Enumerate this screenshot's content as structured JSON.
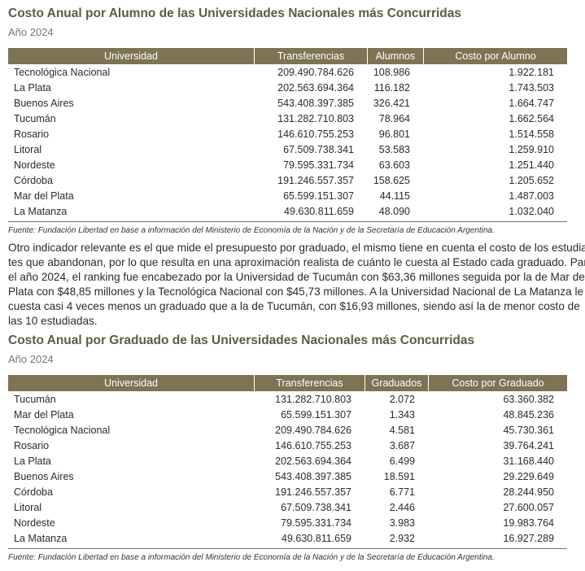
{
  "sections": [
    {
      "title": "Costo Anual por Alumno de las Universidades Nacionales más Concurridas",
      "subtitle": "Año 2024",
      "table": {
        "header": [
          "Universidad",
          "Transferencias",
          "Alumnos",
          "Costo por Alumno"
        ],
        "rows": [
          [
            "Tecnológica Nacional",
            "209.490.784.626",
            "108.986",
            "1.922.181"
          ],
          [
            "La Plata",
            "202.563.694.364",
            "116.182",
            "1.743.503"
          ],
          [
            "Buenos Aires",
            "543.408.397.385",
            "326.421",
            "1.664.747"
          ],
          [
            "Tucumán",
            "131.282.710.803",
            "78.964",
            "1.662.564"
          ],
          [
            "Rosario",
            "146.610.755.253",
            "96.801",
            "1.514.558"
          ],
          [
            "Litoral",
            "67.509.738.341",
            "53.583",
            "1.259.910"
          ],
          [
            "Nordeste",
            "79.595.331.734",
            "63.603",
            "1.251.440"
          ],
          [
            "Córdoba",
            "191.246.557.357",
            "158.625",
            "1.205.652"
          ],
          [
            "Mar del Plata",
            "65.599.151.307",
            "44.115",
            "1.487.003"
          ],
          [
            "La Matanza",
            "49.630.811.659",
            "48.090",
            "1.032.040"
          ]
        ]
      },
      "source": "Fuente: Fundación Libertad en base a información del Ministerio de Economía de la Nación y de la Secretaría de Educación Argentina."
    },
    {
      "title": "Costo Anual por Graduado de las Universidades Nacionales más Concurridas",
      "subtitle": "Año 2024",
      "table": {
        "header": [
          "Universidad",
          "Transferencias",
          "Graduados",
          "Costo por Graduado"
        ],
        "rows": [
          [
            "Tucumán",
            "131.282.710.803",
            "2.072",
            "63.360.382"
          ],
          [
            "Mar del Plata",
            "65.599.151.307",
            "1.343",
            "48.845.236"
          ],
          [
            "Tecnológica Nacional",
            "209.490.784.626",
            "4.581",
            "45.730.361"
          ],
          [
            "Rosario",
            "146.610.755.253",
            "3.687",
            "39.764.241"
          ],
          [
            "La Plata",
            "202.563.694.364",
            "6.499",
            "31.168.440"
          ],
          [
            "Buenos Aires",
            "543.408.397.385",
            "18.591",
            "29.229.649"
          ],
          [
            "Córdoba",
            "191.246.557.357",
            "6.771",
            "28.244.950"
          ],
          [
            "Litoral",
            "67.509.738.341",
            "2.446",
            "27.600.057"
          ],
          [
            "Nordeste",
            "79.595.331.734",
            "3.983",
            "19.983.764"
          ],
          [
            "La Matanza",
            "49.630.811.659",
            "2.932",
            "16.927.289"
          ]
        ]
      },
      "source": "Fuente: Fundación Libertad en base a información del Ministerio de Economía de la Nación y de la Secretaría de Educación Argentina."
    }
  ],
  "paragraph": {
    "lines": [
      "Otro indicador relevante es el que mide el presupuesto por graduado, el mismo tiene en cuenta el costo de los estudian-",
      "tes que abandonan, por lo que resulta en una aproximación realista de cuánto le cuesta al Estado cada graduado. Para",
      "el año 2024, el ranking fue encabezado por la Universidad de Tucumán con $63,36 millones seguida por la de Mar del",
      "Plata con $48,85 millones y la Tecnológica Nacional con $45,73 millones. A la Universidad Nacional de La Matanza le",
      "cuesta casi 4 veces menos un graduado que a la de Tucumán, con $16,93 millones, siendo así la de menor costo de",
      "las 10 estudiadas."
    ]
  }
}
